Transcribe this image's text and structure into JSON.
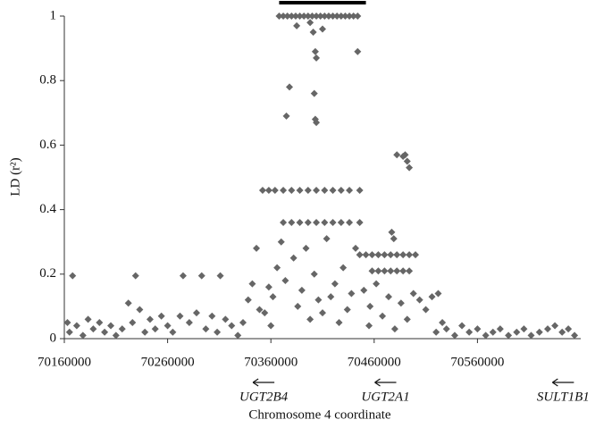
{
  "chart_data": {
    "type": "scatter",
    "x_label": "Chromosome 4 coordinate",
    "y_label": "LD (r²)",
    "color": "#666666",
    "xlim": [
      70160000,
      70660000
    ],
    "ylim": [
      0,
      1
    ],
    "xticks": [
      70160000,
      70260000,
      70360000,
      70460000,
      70560000
    ],
    "yticks": [
      0,
      0.2,
      0.4,
      0.6,
      0.8,
      1
    ],
    "highlight_range": [
      70368000,
      70452000
    ],
    "annotations": [
      {
        "text": "UGT2B4",
        "x": 70353000
      },
      {
        "text": "UGT2A1",
        "x": 70471000
      },
      {
        "text": "SULT1B1",
        "x": 70643000
      }
    ],
    "x": [
      70163000,
      70165000,
      70168000,
      70172000,
      70178000,
      70183000,
      70188000,
      70194000,
      70199000,
      70205000,
      70210000,
      70216000,
      70222000,
      70226000,
      70229000,
      70233000,
      70238000,
      70243000,
      70248000,
      70254000,
      70260000,
      70265000,
      70272000,
      70275000,
      70281000,
      70288000,
      70293000,
      70297000,
      70303000,
      70308000,
      70311000,
      70316000,
      70322000,
      70328000,
      70333000,
      70338000,
      70342000,
      70346000,
      70349000,
      70368000,
      70372000,
      70376000,
      70380000,
      70384000,
      70388000,
      70392000,
      70396000,
      70400000,
      70404000,
      70408000,
      70412000,
      70416000,
      70420000,
      70424000,
      70428000,
      70432000,
      70436000,
      70440000,
      70444000,
      70378000,
      70375000,
      70398000,
      70401000,
      70403000,
      70404000,
      70402000,
      70403000,
      70404000,
      70410000,
      70444000,
      70385000,
      70352000,
      70358000,
      70364000,
      70372000,
      70380000,
      70388000,
      70396000,
      70404000,
      70412000,
      70420000,
      70428000,
      70436000,
      70446000,
      70372000,
      70380000,
      70388000,
      70396000,
      70404000,
      70412000,
      70420000,
      70428000,
      70436000,
      70446000,
      70362000,
      70366000,
      70370000,
      70374000,
      70382000,
      70386000,
      70390000,
      70394000,
      70398000,
      70402000,
      70406000,
      70410000,
      70414000,
      70418000,
      70422000,
      70426000,
      70430000,
      70434000,
      70438000,
      70442000,
      70354000,
      70358000,
      70360000,
      70446000,
      70452000,
      70458000,
      70464000,
      70470000,
      70476000,
      70482000,
      70488000,
      70494000,
      70500000,
      70458000,
      70464000,
      70470000,
      70476000,
      70482000,
      70488000,
      70494000,
      70482000,
      70488000,
      70492000,
      70494000,
      70490000,
      70477000,
      70479000,
      70450000,
      70456000,
      70462000,
      70468000,
      70474000,
      70480000,
      70486000,
      70492000,
      70498000,
      70504000,
      70510000,
      70516000,
      70522000,
      70526000,
      70520000,
      70455000,
      70530000,
      70538000,
      70545000,
      70552000,
      70560000,
      70568000,
      70575000,
      70582000,
      70590000,
      70598000,
      70605000,
      70612000,
      70620000,
      70628000,
      70635000,
      70642000,
      70648000,
      70654000
    ],
    "values": [
      0.05,
      0.02,
      0.195,
      0.04,
      0.01,
      0.06,
      0.03,
      0.05,
      0.02,
      0.04,
      0.01,
      0.03,
      0.11,
      0.05,
      0.195,
      0.09,
      0.02,
      0.06,
      0.03,
      0.07,
      0.04,
      0.02,
      0.07,
      0.195,
      0.05,
      0.08,
      0.195,
      0.03,
      0.07,
      0.02,
      0.195,
      0.06,
      0.04,
      0.01,
      0.05,
      0.12,
      0.17,
      0.28,
      0.09,
      1,
      1,
      1,
      1,
      1,
      1,
      1,
      1,
      1,
      1,
      1,
      1,
      1,
      1,
      1,
      1,
      1,
      1,
      1,
      1,
      0.78,
      0.69,
      0.98,
      0.95,
      0.89,
      0.87,
      0.76,
      0.68,
      0.67,
      0.96,
      0.89,
      0.97,
      0.46,
      0.46,
      0.46,
      0.46,
      0.46,
      0.46,
      0.46,
      0.46,
      0.46,
      0.46,
      0.46,
      0.46,
      0.46,
      0.36,
      0.36,
      0.36,
      0.36,
      0.36,
      0.36,
      0.36,
      0.36,
      0.36,
      0.36,
      0.13,
      0.22,
      0.3,
      0.18,
      0.25,
      0.1,
      0.15,
      0.28,
      0.06,
      0.2,
      0.12,
      0.08,
      0.31,
      0.13,
      0.17,
      0.05,
      0.22,
      0.09,
      0.14,
      0.28,
      0.08,
      0.16,
      0.04,
      0.26,
      0.26,
      0.26,
      0.26,
      0.26,
      0.26,
      0.26,
      0.26,
      0.26,
      0.26,
      0.21,
      0.21,
      0.21,
      0.21,
      0.21,
      0.21,
      0.21,
      0.57,
      0.565,
      0.55,
      0.53,
      0.57,
      0.33,
      0.31,
      0.15,
      0.1,
      0.17,
      0.07,
      0.13,
      0.03,
      0.11,
      0.06,
      0.14,
      0.12,
      0.09,
      0.13,
      0.14,
      0.05,
      0.02,
      0.04,
      0.03,
      0.01,
      0.04,
      0.02,
      0.03,
      0.01,
      0.02,
      0.03,
      0.01,
      0.02,
      0.03,
      0.01,
      0.02,
      0.03,
      0.04,
      0.02,
      0.03,
      0.01
    ]
  }
}
